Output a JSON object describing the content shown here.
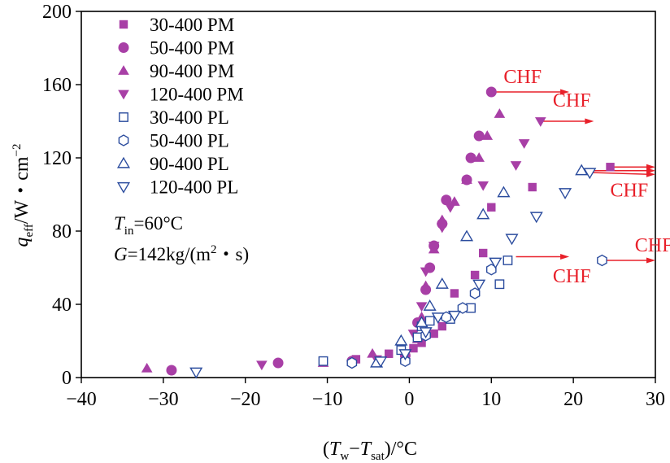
{
  "chart_data": {
    "type": "scatter",
    "title": "",
    "xlabel": "(T_w−T_sat)/°C",
    "ylabel": "q_eff/W·cm^-2",
    "xlim": [
      -40,
      30
    ],
    "ylim": [
      0,
      200
    ],
    "xticks": [
      "−40",
      "−30",
      "−20",
      "−10",
      "0",
      "10",
      "20",
      "30"
    ],
    "yticks": [
      "0",
      "40",
      "80",
      "120",
      "160",
      "200"
    ],
    "legend_position": "top-left",
    "colors": {
      "PM": "#a83fa6",
      "PL": "#2b4c9e",
      "annotation": "#e8202a"
    },
    "series": [
      {
        "name": "30-400 PM",
        "marker": "square",
        "filled": true,
        "x": [
          -6.5,
          -2.5,
          0.5,
          1.5,
          3.0,
          4.0,
          5.5,
          8.0,
          9.0,
          10.0,
          15.0,
          24.5
        ],
        "y": [
          10,
          13,
          16,
          19,
          24,
          28,
          46,
          56,
          68,
          93,
          104,
          115
        ]
      },
      {
        "name": "50-400 PM",
        "marker": "circle",
        "filled": true,
        "x": [
          -29,
          -16,
          -7,
          -0.5,
          1.0,
          2.0,
          2.5,
          3.0,
          4.0,
          4.5,
          7.0,
          7.5,
          8.5,
          10.0
        ],
        "y": [
          4,
          8,
          9,
          12,
          30,
          48,
          60,
          72,
          84,
          97,
          108,
          120,
          132,
          156
        ]
      },
      {
        "name": "90-400 PM",
        "marker": "triangle-up",
        "filled": true,
        "x": [
          -32,
          -10.5,
          -4.5,
          1.0,
          1.5,
          2.0,
          3.0,
          4.0,
          5.5,
          7.0,
          8.5,
          9.5,
          11.0
        ],
        "y": [
          5,
          8,
          13,
          21,
          33,
          50,
          70,
          86,
          96,
          108,
          120,
          132,
          144
        ],
        "break_after": 0
      },
      {
        "name": "120-400 PM",
        "marker": "triangle-down",
        "filled": true,
        "x": [
          -18,
          -4,
          0.5,
          1.5,
          2.0,
          3.0,
          4.0,
          5.0,
          9.0,
          13.0,
          14.0,
          16.0
        ],
        "y": [
          7,
          10,
          24,
          39,
          58,
          72,
          82,
          93,
          105,
          116,
          128,
          140
        ]
      },
      {
        "name": "30-400 PL",
        "marker": "square",
        "filled": false,
        "x": [
          -10.5,
          -1.0,
          1.0,
          1.5,
          2.5,
          5.0,
          7.5,
          11.0,
          12.0
        ],
        "y": [
          9,
          15,
          22,
          28,
          31,
          32,
          38,
          51,
          64
        ]
      },
      {
        "name": "50-400 PL",
        "marker": "hexagon",
        "filled": false,
        "x": [
          -7,
          -0.5,
          2.0,
          4.5,
          6.5,
          8.0,
          10.0,
          23.5
        ],
        "y": [
          8,
          9,
          23,
          33,
          38,
          46,
          59,
          64
        ]
      },
      {
        "name": "90-400 PL",
        "marker": "triangle-up",
        "filled": false,
        "x": [
          -4,
          -1,
          1.5,
          2.5,
          4.0,
          7.0,
          9.0,
          11.5,
          21.0
        ],
        "y": [
          8,
          20,
          30,
          39,
          51,
          77,
          89,
          101,
          113
        ]
      },
      {
        "name": "120-400 PL",
        "marker": "triangle-down",
        "filled": false,
        "x": [
          -26,
          -3.5,
          -0.5,
          2.0,
          3.5,
          5.5,
          8.5,
          10.5,
          12.5,
          15.5,
          19.0,
          22.0
        ],
        "y": [
          3,
          9,
          13,
          25,
          33,
          34,
          51,
          63,
          76,
          88,
          101,
          112
        ]
      }
    ],
    "annotations": [
      {
        "text": "CHF",
        "x": 11.5,
        "y": 161,
        "arrow_from": [
          10.0,
          156
        ],
        "arrow_to": [
          19.5,
          156
        ]
      },
      {
        "text": "CHF",
        "x": 17.5,
        "y": 148,
        "arrow_from": [
          16.0,
          140
        ],
        "arrow_to": [
          22.5,
          140
        ]
      },
      {
        "text": "CHF",
        "x": 24.5,
        "y": 99,
        "arrow_from": [
          24.5,
          115
        ],
        "arrow_to": [
          30.0,
          115
        ]
      },
      {
        "text": "CHF",
        "x": 27.5,
        "y": 69,
        "arrow_from": [
          23.5,
          64
        ],
        "arrow_to": [
          30.0,
          64
        ]
      },
      {
        "text": "CHF",
        "x": 17.5,
        "y": 52,
        "arrow_from": [
          13.0,
          66
        ],
        "arrow_to": [
          19.5,
          66
        ]
      }
    ],
    "extra_arrows": [
      {
        "from": [
          21.0,
          113
        ],
        "to": [
          30.0,
          113
        ]
      },
      {
        "from": [
          22.0,
          112
        ],
        "to": [
          30.0,
          111
        ]
      }
    ],
    "conditions": {
      "Tin_label": "T",
      "Tin_sub": "in",
      "Tin_value": "=60°C",
      "G_label": "G",
      "G_value": "=142kg/(m",
      "G_sup": "2",
      "G_tail": "・s)"
    },
    "axis_titles": {
      "x_open": "(",
      "x_T1": "T",
      "x_sub1": "w",
      "x_minus": "−",
      "x_T2": "T",
      "x_sub2": "sat",
      "x_close": ")/°C",
      "y_q": "q",
      "y_sub": "eff",
      "y_unit": "/W・cm",
      "y_sup": "−2"
    }
  }
}
